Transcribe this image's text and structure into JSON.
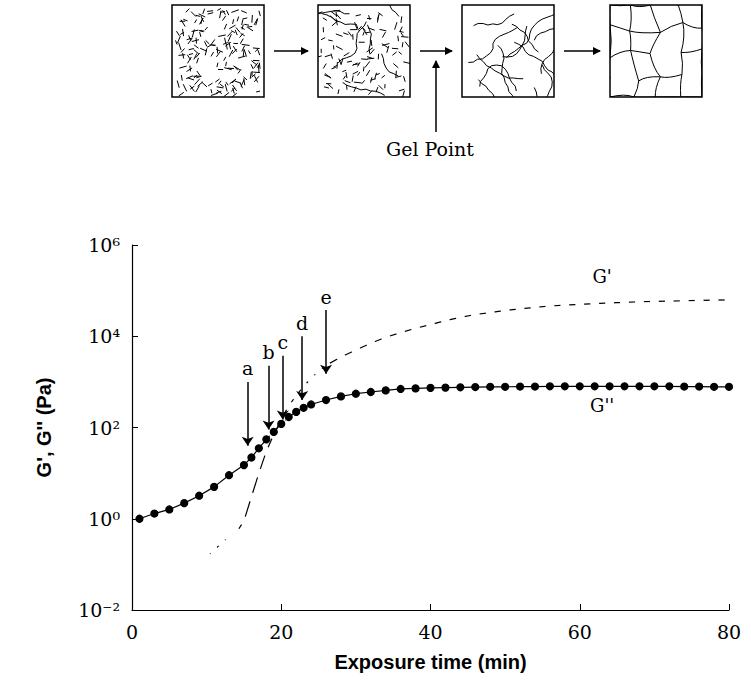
{
  "chart_data": {
    "type": "line",
    "xlabel": "Exposure time (min)",
    "ylabel": "G', G'' (Pa)",
    "xlim": [
      0,
      80
    ],
    "xticks": [
      0,
      20,
      40,
      60,
      80
    ],
    "ylim": [
      0.01,
      1000000
    ],
    "yticks": [
      {
        "value": 0.01,
        "label": "10⁻²"
      },
      {
        "value": 1,
        "label": "10⁰"
      },
      {
        "value": 100,
        "label": "10²"
      },
      {
        "value": 10000,
        "label": "10⁴"
      },
      {
        "value": 1000000,
        "label": "10⁶"
      }
    ],
    "log": "y",
    "grid": false,
    "series": [
      {
        "name": "G'",
        "marker": "open_circle",
        "color": "#000000",
        "line_style": "solid",
        "label_x": 63,
        "label_y": 200000,
        "x": [
          10,
          11,
          12,
          13,
          14,
          15,
          16,
          17,
          18,
          19,
          20,
          21,
          22,
          23,
          24,
          25,
          26,
          28,
          30,
          32,
          34,
          36,
          38,
          40,
          42,
          44,
          46,
          48,
          50,
          52,
          54,
          56,
          58,
          60,
          62,
          64,
          66,
          68,
          70,
          72,
          74,
          76,
          78,
          80
        ],
        "values": [
          0.15,
          0.2,
          0.3,
          0.4,
          0.5,
          0.9,
          3,
          10,
          30,
          70,
          150,
          300,
          500,
          800,
          1200,
          1700,
          2300,
          3500,
          5000,
          7000,
          9500,
          12000,
          15000,
          18000,
          22000,
          26000,
          30000,
          33000,
          37000,
          40000,
          43000,
          46000,
          48000,
          50000,
          52000,
          54000,
          55000,
          57000,
          58000,
          59000,
          60000,
          61000,
          62000,
          63000
        ]
      },
      {
        "name": "G''",
        "marker": "filled_circle",
        "color": "#000000",
        "line_style": "solid",
        "label_x": 63,
        "label_y": 300,
        "x": [
          1,
          3,
          5,
          7,
          9,
          11,
          13,
          15,
          16,
          17,
          18,
          19,
          20,
          21,
          22,
          23,
          24,
          26,
          28,
          30,
          32,
          34,
          36,
          38,
          40,
          42,
          44,
          46,
          48,
          50,
          52,
          54,
          56,
          58,
          60,
          62,
          64,
          66,
          68,
          70,
          72,
          74,
          76,
          78,
          80
        ],
        "values": [
          1.0,
          1.3,
          1.6,
          2.2,
          3.2,
          5,
          9,
          15,
          22,
          35,
          55,
          80,
          120,
          170,
          220,
          270,
          320,
          400,
          480,
          550,
          600,
          650,
          700,
          720,
          740,
          750,
          760,
          770,
          780,
          780,
          790,
          790,
          800,
          800,
          800,
          800,
          800,
          800,
          800,
          800,
          800,
          790,
          790,
          780,
          780
        ]
      }
    ],
    "annotations": [
      {
        "text": "a",
        "x": 15.5,
        "y": 40
      },
      {
        "text": "b",
        "x": 18.3,
        "y": 90
      },
      {
        "text": "c",
        "x": 20.2,
        "y": 150
      },
      {
        "text": "d",
        "x": 22.8,
        "y": 400
      },
      {
        "text": "e",
        "x": 26,
        "y": 1500
      }
    ]
  },
  "diagram": {
    "label": "Gel Point"
  }
}
